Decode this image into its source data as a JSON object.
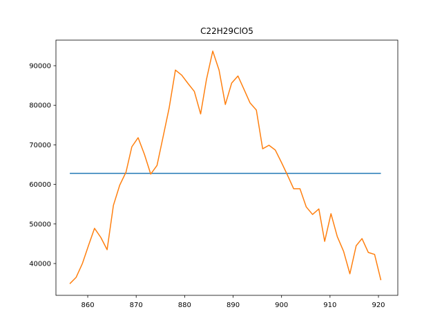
{
  "chart_data": {
    "type": "line",
    "title": "C22H29ClO5",
    "xlim": [
      853.44,
      923.99
    ],
    "ylim": [
      31958,
      96469
    ],
    "xticks": [
      860,
      870,
      880,
      890,
      900,
      910,
      920
    ],
    "yticks": [
      40000,
      50000,
      60000,
      70000,
      80000,
      90000
    ],
    "series": [
      {
        "color": "#1f77b4",
        "x": [
          856.3,
          920.5
        ],
        "values": [
          62800,
          62800
        ]
      },
      {
        "color": "#ff7f0e",
        "x": [
          856.3,
          857.6,
          858.9,
          860.2,
          861.4,
          862.7,
          864.0,
          865.3,
          866.6,
          867.9,
          869.1,
          870.4,
          871.7,
          873.0,
          874.3,
          875.6,
          876.8,
          878.1,
          879.4,
          880.7,
          882.0,
          883.3,
          884.5,
          885.8,
          887.1,
          888.4,
          889.7,
          891.0,
          892.3,
          893.5,
          894.8,
          896.1,
          897.4,
          898.7,
          900.0,
          901.2,
          902.5,
          903.8,
          905.1,
          906.4,
          907.7,
          908.9,
          910.2,
          911.5,
          912.8,
          914.1,
          915.4,
          916.6,
          917.9,
          919.2,
          920.5
        ],
        "values": [
          34900,
          36500,
          40000,
          44700,
          48900,
          46600,
          43500,
          54700,
          59800,
          63100,
          69500,
          71800,
          67600,
          62600,
          64800,
          72300,
          79300,
          88900,
          87600,
          85500,
          83500,
          77800,
          86500,
          93700,
          88900,
          80200,
          85600,
          87400,
          83900,
          80600,
          78800,
          69000,
          69900,
          68700,
          65500,
          62400,
          58900,
          58900,
          54300,
          52400,
          53800,
          45600,
          52600,
          46800,
          43100,
          37400,
          44500,
          46300,
          42800,
          42300,
          35800
        ]
      }
    ]
  }
}
